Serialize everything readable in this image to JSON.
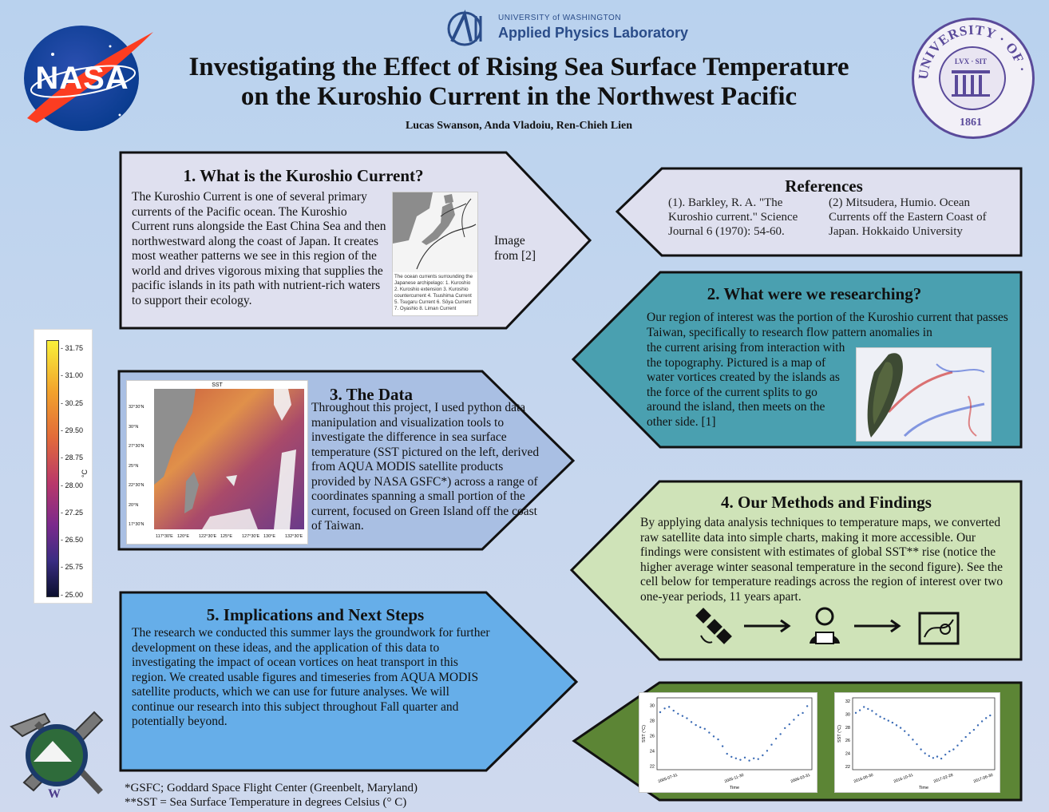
{
  "header": {
    "title_line1": "Investigating the Effect of Rising Sea Surface Temperature",
    "title_line2": "on the Kuroshio Current in the Northwest Pacific",
    "authors": "Lucas Swanson, Anda Vladoiu, Ren-Chieh Lien",
    "nasa_logo": "NASA",
    "apl_line1": "UNIVERSITY of WASHINGTON",
    "apl_line2": "Applied Physics Laboratory",
    "uw_seal_ring": "UNIVERSITY · OF · WASHINGTON",
    "uw_seal_year": "1861",
    "uw_seal_motto": "LVX · SIT"
  },
  "section1": {
    "title": "1. What is the Kuroshio Current?",
    "body": "The Kuroshio Current is one of several primary currents of the Pacific ocean. The Kuroshio Current runs alongside the East China Sea and then northwestward along the coast of Japan. It creates most weather patterns we see in this region of the world and drives vigorous mixing that supplies the pacific islands in its path with nutrient-rich waters to support their ecology.",
    "image_caption": "The ocean currents surrounding the Japanese archipelago: 1. Kuroshio 2. Kuroshio extension 3. Kuroshio countercurrent 4. Tsushima Current 5. Tsugaru Current 6. Sōya Current 7. Oyashio 8. Liman Current",
    "image_note_line1": "Image",
    "image_note_line2": "from [2]"
  },
  "references": {
    "title": "References",
    "ref1": "(1). Barkley, R. A. \"The Kuroshio current.\" Science Journal 6 (1970): 54-60.",
    "ref2": "(2) Mitsudera, Humio. Ocean Currents off the Eastern Coast of Japan. Hokkaido University"
  },
  "section2": {
    "title": "2. What were we researching?",
    "body_top": "Our region of interest was the portion of the Kuroshio current that passes Taiwan, specifically to research flow pattern anomalies in",
    "body_left": "the current arising from interaction with the topography. Pictured is a map of water vortices created by the islands as the force of the current splits to go around the island, then meets on the other side. [1]"
  },
  "section3": {
    "title": "3. The Data",
    "body": "Throughout this project, I used python data manipulation and visualization tools to investigate the difference in sea surface temperature (SST pictured on the left, derived from AQUA MODIS satellite products provided by NASA GSFC*) across a range of coordinates spanning a small portion of the current, focused on Green Island off the coast of Taiwan.",
    "map_title": "SST",
    "lat_labels": [
      "32°30'N",
      "30°N",
      "27°30'N",
      "25°N",
      "22°30'N",
      "20°N",
      "17°30'N"
    ],
    "lon_labels": [
      "117°30'E",
      "120°E",
      "122°30'E",
      "125°E",
      "127°30'E",
      "130°E",
      "132°30'E"
    ]
  },
  "colorbar": {
    "ticks": [
      "31.75",
      "31.00",
      "30.25",
      "29.50",
      "28.75",
      "28.00",
      "27.25",
      "26.50",
      "25.75",
      "25.00"
    ],
    "unit": "°C"
  },
  "section4": {
    "title": "4. Our Methods and Findings",
    "body": "By applying data analysis techniques to temperature maps, we converted raw satellite data into simple charts, making it more accessible. Our findings were consistent with estimates of global SST** rise (notice the higher average winter seasonal temperature in the second figure). See the cell below for temperature readings across the region of interest over two one-year periods, 11 years apart.",
    "icons": [
      "satellite-icon",
      "arrow-right-icon",
      "analyst-computer-icon",
      "arrow-right-icon",
      "map-chart-icon"
    ]
  },
  "section5": {
    "title": "5. Implications and Next Steps",
    "body": "The research we conducted this summer lays the groundwork for further development on these ideas, and the application of this data to investigating the impact of ocean vortices on heat transport in this region. We created usable figures and timeseries from AQUA MODIS satellite products, which we can use for future analyses. We will continue our research into this subject throughout Fall quarter and potentially beyond."
  },
  "footnotes": {
    "gsfc": "*GSFC; Goddard Space Flight Center (Greenbelt, Maryland)",
    "sst": "**SST = Sea Surface Temperature in degrees Celsius (° C)"
  },
  "dept_logo_letter": "W",
  "chart_data": [
    {
      "type": "scatter",
      "title": "",
      "xlabel": "Time",
      "ylabel": "SST (°C)",
      "ylim": [
        21.5,
        31
      ],
      "yticks": [
        "30",
        "28",
        "26",
        "24",
        "22"
      ],
      "xticks": [
        "2005-07-31",
        "2005-11-30",
        "2006-03-31"
      ],
      "x": [
        0.0,
        0.03,
        0.06,
        0.09,
        0.12,
        0.15,
        0.18,
        0.21,
        0.24,
        0.27,
        0.3,
        0.33,
        0.36,
        0.39,
        0.42,
        0.45,
        0.48,
        0.51,
        0.54,
        0.57,
        0.6,
        0.63,
        0.66,
        0.69,
        0.72,
        0.75,
        0.78,
        0.81,
        0.84,
        0.87,
        0.9,
        0.93,
        0.96,
        0.99
      ],
      "y": [
        29.1,
        29.6,
        29.8,
        29.3,
        28.9,
        28.6,
        28.3,
        27.8,
        27.4,
        27.1,
        26.9,
        26.4,
        25.9,
        25.5,
        24.6,
        23.6,
        23.2,
        23.0,
        22.8,
        23.1,
        22.7,
        23.0,
        22.9,
        23.4,
        24.0,
        24.8,
        25.6,
        26.2,
        27.0,
        27.5,
        28.1,
        28.7,
        29.0,
        29.9
      ]
    },
    {
      "type": "scatter",
      "title": "",
      "xlabel": "Time",
      "ylabel": "SST (°C)",
      "ylim": [
        21.5,
        32.5
      ],
      "yticks": [
        "32",
        "30",
        "28",
        "26",
        "24",
        "22"
      ],
      "xticks": [
        "2016-06-30",
        "2016-10-31",
        "2017-02-28",
        "2017-06-30"
      ],
      "x": [
        0.0,
        0.03,
        0.06,
        0.09,
        0.12,
        0.15,
        0.18,
        0.21,
        0.24,
        0.27,
        0.3,
        0.33,
        0.36,
        0.39,
        0.42,
        0.45,
        0.48,
        0.51,
        0.54,
        0.57,
        0.6,
        0.63,
        0.66,
        0.69,
        0.72,
        0.75,
        0.78,
        0.81,
        0.84,
        0.87,
        0.9,
        0.93,
        0.96,
        0.99
      ],
      "y": [
        30.2,
        30.6,
        31.1,
        30.8,
        30.5,
        30.0,
        29.6,
        29.3,
        29.0,
        28.7,
        28.3,
        27.9,
        27.4,
        26.8,
        26.1,
        25.4,
        24.6,
        24.0,
        23.6,
        23.3,
        23.5,
        23.2,
        23.8,
        24.3,
        24.6,
        25.2,
        25.9,
        26.5,
        27.1,
        27.6,
        28.3,
        28.9,
        29.4,
        29.8
      ]
    }
  ]
}
